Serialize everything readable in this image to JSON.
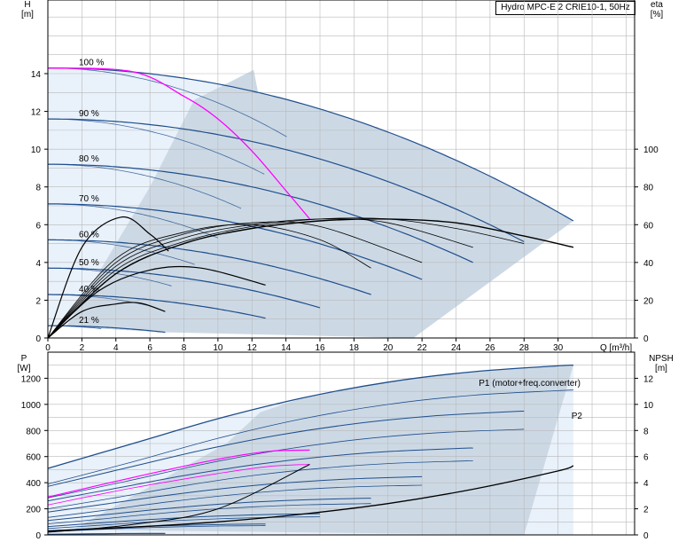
{
  "title": "Hydro MPC-E 2 CRIE10-1, 50Hz",
  "colors": {
    "shade": "#ccd9e5",
    "shade_light": "#e9f1fa",
    "curve_blue": "#1f4e8c",
    "eff": "#000000",
    "magenta": "#ff00ff",
    "grid": "#b9b9b9"
  },
  "chart_data": [
    {
      "type": "line",
      "panel": "head-efficiency",
      "xlabel": "Q [m³/h]",
      "ylabel_left": "H\n[m]",
      "ylabel_right": "eta\n[%]",
      "xlim": [
        0,
        34.5
      ],
      "ylim_left": [
        0,
        17.9
      ],
      "ylim_right": [
        0,
        179
      ],
      "xticks": [
        0,
        2,
        4,
        6,
        8,
        10,
        12,
        14,
        16,
        18,
        20,
        22,
        24,
        26,
        28,
        30
      ],
      "yticks_left": [
        0,
        2,
        4,
        6,
        8,
        10,
        12,
        14
      ],
      "yticks_right": [
        0,
        20,
        40,
        60,
        80,
        100
      ],
      "speed_labels": [
        {
          "text": "100 %",
          "h": 14.3
        },
        {
          "text": "90 %",
          "h": 11.6
        },
        {
          "text": "80 %",
          "h": 9.2
        },
        {
          "text": "70 %",
          "h": 7.1
        },
        {
          "text": "60 %",
          "h": 5.2
        },
        {
          "text": "50 %",
          "h": 3.7
        },
        {
          "text": "40 %",
          "h": 2.3
        },
        {
          "text": "21 %",
          "h": 0.65
        }
      ],
      "head_curves_2pump": [
        {
          "speed": 100,
          "h0": 14.3,
          "qmax": 30.9,
          "hend": 6.2
        },
        {
          "speed": 90,
          "h0": 11.6,
          "qmax": 28.0,
          "hend": 5.1
        },
        {
          "speed": 80,
          "h0": 9.2,
          "qmax": 25.0,
          "hend": 4.0
        },
        {
          "speed": 70,
          "h0": 7.1,
          "qmax": 22.0,
          "hend": 3.1
        },
        {
          "speed": 60,
          "h0": 5.2,
          "qmax": 19.0,
          "hend": 2.3
        },
        {
          "speed": 50,
          "h0": 3.7,
          "qmax": 16.0,
          "hend": 1.6
        },
        {
          "speed": 40,
          "h0": 2.3,
          "qmax": 12.8,
          "hend": 1.05
        },
        {
          "speed": 21,
          "h0": 0.65,
          "qmax": 6.9,
          "hend": 0.3
        }
      ],
      "efficiency_curves_2pump": [
        {
          "q": [
            0,
            4,
            8,
            12,
            16,
            20,
            24,
            28,
            30.9
          ],
          "eta": [
            0,
            34,
            50,
            58,
            62,
            63,
            61,
            54,
            48
          ]
        },
        {
          "q": [
            0,
            4,
            8,
            12,
            16,
            20,
            24,
            28.0
          ],
          "eta": [
            0,
            36,
            51,
            59,
            63,
            63,
            58,
            50
          ]
        },
        {
          "q": [
            0,
            4,
            8,
            12,
            16,
            20,
            25.0
          ],
          "eta": [
            0,
            38,
            53,
            60,
            63,
            61,
            48
          ]
        },
        {
          "q": [
            0,
            4,
            8,
            12,
            16,
            22.0
          ],
          "eta": [
            0,
            40,
            55,
            61,
            59,
            40
          ]
        },
        {
          "q": [
            0,
            4,
            8,
            12,
            16,
            19.0
          ],
          "eta": [
            0,
            42,
            56,
            60,
            52,
            37
          ]
        }
      ],
      "efficiency_curves_1pump": [
        {
          "q": [
            0,
            2,
            4.3,
            6,
            7.1
          ],
          "eta": [
            0,
            48,
            64,
            55,
            46
          ]
        },
        {
          "q": [
            0,
            3,
            6,
            9,
            12.8
          ],
          "eta": [
            0,
            25,
            36,
            37,
            28
          ]
        },
        {
          "q": [
            0,
            2,
            4,
            5.4,
            6.9
          ],
          "eta": [
            0,
            14,
            18,
            18.5,
            14
          ]
        }
      ],
      "max_power_line": {
        "q": [
          0,
          5,
          8,
          10,
          12,
          14,
          15.4
        ],
        "h": [
          14.3,
          14.1,
          12.8,
          11.6,
          9.9,
          7.8,
          6.3
        ]
      }
    },
    {
      "type": "line",
      "panel": "power-npsh",
      "ylabel_left": "P\n[W]",
      "ylabel_right": "NPSH\n[m]",
      "xlim": [
        0,
        34.5
      ],
      "ylim_left": [
        0,
        1400
      ],
      "ylim_right": [
        0,
        14
      ],
      "yticks_left": [
        0,
        200,
        400,
        600,
        800,
        1000,
        1200
      ],
      "yticks_right": [
        0,
        2,
        4,
        6,
        8,
        10,
        12
      ],
      "curve_labels": [
        "P1 (motor+freq.converter)",
        "P2"
      ],
      "p1_curve": {
        "q": [
          0,
          5,
          10,
          15,
          20,
          25,
          30,
          30.9
        ],
        "p": [
          510,
          700,
          890,
          1050,
          1170,
          1250,
          1295,
          1300
        ]
      },
      "p2_curve": {
        "q": [
          0,
          5,
          10,
          15,
          20,
          25,
          30,
          30.9
        ],
        "p": [
          390,
          560,
          740,
          890,
          1000,
          1070,
          1105,
          1110
        ]
      },
      "npsh_curve": {
        "q": [
          0,
          5,
          10,
          15,
          20,
          25,
          30,
          30.9
        ],
        "npsh": [
          0.3,
          0.6,
          1.0,
          1.6,
          2.4,
          3.5,
          4.9,
          5.3
        ]
      }
    }
  ]
}
